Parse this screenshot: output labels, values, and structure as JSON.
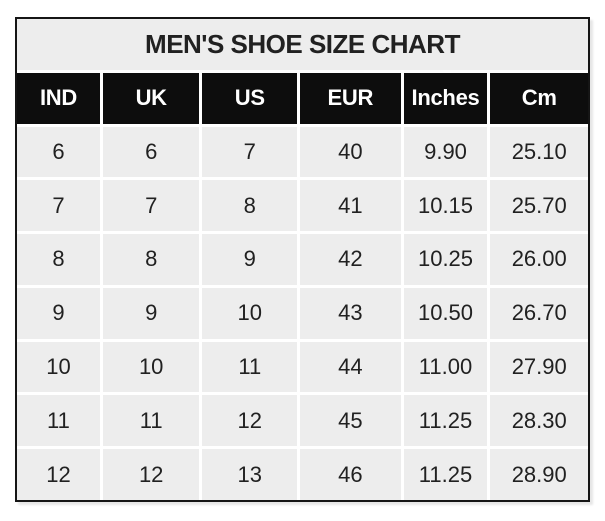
{
  "colors": {
    "header_bg": "#0d0d0d",
    "header_text": "#ffffff",
    "cell_bg": "#ededed",
    "title_bg": "#ededed",
    "gap": "#ffffff",
    "border": "#151515",
    "text": "#212121",
    "page_bg": "#ffffff"
  },
  "chart_data": {
    "type": "table",
    "title": "MEN'S SHOE SIZE CHART",
    "columns": [
      "IND",
      "UK",
      "US",
      "EUR",
      "Inches",
      "Cm"
    ],
    "rows": [
      [
        "6",
        "6",
        "7",
        "40",
        "9.90",
        "25.10"
      ],
      [
        "7",
        "7",
        "8",
        "41",
        "10.15",
        "25.70"
      ],
      [
        "8",
        "8",
        "9",
        "42",
        "10.25",
        "26.00"
      ],
      [
        "9",
        "9",
        "10",
        "43",
        "10.50",
        "26.70"
      ],
      [
        "10",
        "10",
        "11",
        "44",
        "11.00",
        "27.90"
      ],
      [
        "11",
        "11",
        "12",
        "45",
        "11.25",
        "28.30"
      ],
      [
        "12",
        "12",
        "13",
        "46",
        "11.25",
        "28.90"
      ]
    ]
  }
}
